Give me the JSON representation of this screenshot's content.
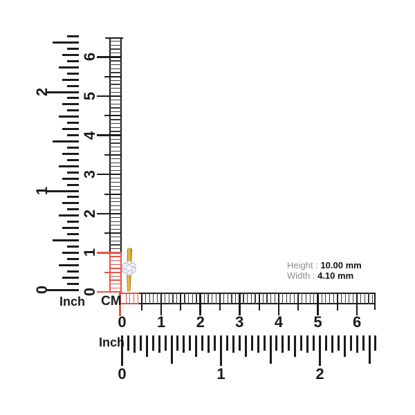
{
  "labels": {
    "vertical_inch_label": "Inch",
    "cm_label": "CM",
    "bottom_inch_label": "Inch"
  },
  "vertical_inch_ruler": {
    "numbers": [
      "0",
      "1",
      "2"
    ]
  },
  "vertical_cm_ruler": {
    "numbers": [
      "0",
      "1",
      "2",
      "3",
      "4",
      "5",
      "6"
    ]
  },
  "horizontal_cm_ruler": {
    "numbers": [
      "0",
      "1",
      "2",
      "3",
      "4",
      "5",
      "6"
    ]
  },
  "horizontal_inch_ruler": {
    "numbers": [
      "0",
      "1",
      "2"
    ]
  },
  "measurements": {
    "height_label": "Height :",
    "height_value": "10.00 mm",
    "width_label": "Width :",
    "width_value": "4.10 mm"
  },
  "colors": {
    "ruler_black": "#1b1b1b",
    "rung_gray": "#3a3a3a",
    "highlight_red": "#e2544a",
    "gold": "#d9a21c",
    "diamond_white": "#f1f0f8",
    "label_gray": "#8e8e8e"
  },
  "jewelry": {
    "icon": "gold-flower-stud"
  }
}
